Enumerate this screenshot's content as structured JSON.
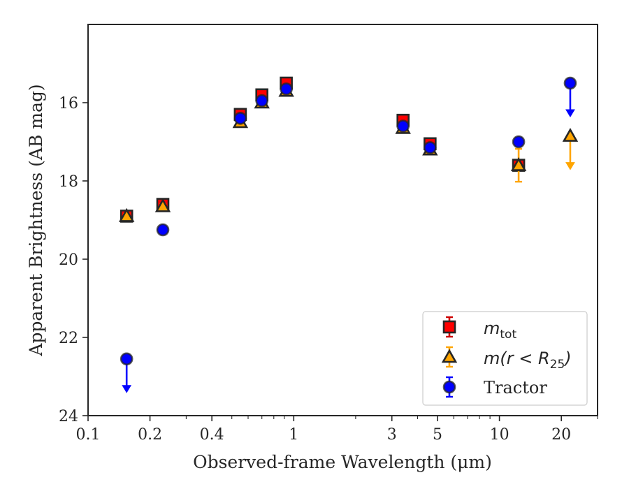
{
  "chart_data": {
    "type": "scatter",
    "title": "",
    "xlabel": "Observed-frame Wavelength (μm)",
    "ylabel": "Apparent Brightness (AB mag)",
    "xscale": "log",
    "xlim": [
      0.1,
      30
    ],
    "ylim": [
      24,
      14
    ],
    "y_inverted": true,
    "grid": false,
    "legend_position": "lower-right",
    "x_ticks": [
      0.1,
      0.2,
      0.4,
      1,
      3,
      5,
      10,
      20
    ],
    "x_tick_labels": [
      "0.1",
      "0.2",
      "0.4",
      "1",
      "3",
      "5",
      "10",
      "20"
    ],
    "y_ticks": [
      16,
      18,
      20,
      22,
      24
    ],
    "y_tick_labels": [
      "16",
      "18",
      "20",
      "22",
      "24"
    ],
    "series": [
      {
        "name": "m_tot",
        "marker": "square",
        "face_color": "#ff0000",
        "edge_color": "#262626",
        "error_color": "#cc0000",
        "points": [
          {
            "x": 0.154,
            "y": 18.9,
            "err": 0.05
          },
          {
            "x": 0.231,
            "y": 18.6,
            "err": 0.05
          },
          {
            "x": 0.55,
            "y": 16.3,
            "err": 0.05
          },
          {
            "x": 0.7,
            "y": 15.8,
            "err": 0.05
          },
          {
            "x": 0.92,
            "y": 15.5,
            "err": 0.05
          },
          {
            "x": 3.4,
            "y": 16.45,
            "err": 0.05
          },
          {
            "x": 4.6,
            "y": 17.05,
            "err": 0.05
          },
          {
            "x": 12.4,
            "y": 17.6,
            "err": 0.05
          }
        ]
      },
      {
        "name": "m(r < R25)",
        "marker": "triangle",
        "face_color": "#ffa500",
        "edge_color": "#262626",
        "error_color": "#ffa500",
        "points": [
          {
            "x": 0.154,
            "y": 18.9,
            "err": 0.05
          },
          {
            "x": 0.231,
            "y": 18.65,
            "err": 0.05
          },
          {
            "x": 0.55,
            "y": 16.5,
            "err": 0.05
          },
          {
            "x": 0.7,
            "y": 16.0,
            "err": 0.05
          },
          {
            "x": 0.92,
            "y": 15.7,
            "err": 0.05
          },
          {
            "x": 3.4,
            "y": 16.65,
            "err": 0.05
          },
          {
            "x": 4.6,
            "y": 17.2,
            "err": 0.05
          },
          {
            "x": 12.4,
            "y": 17.6,
            "err": 0.42
          },
          {
            "x": 22.1,
            "y": 16.85,
            "upper_limit": true
          }
        ]
      },
      {
        "name": "Tractor",
        "marker": "circle",
        "face_color": "#0000ff",
        "edge_color": "#262626",
        "error_color": "#0000ff",
        "points": [
          {
            "x": 0.154,
            "y": 22.55,
            "upper_limit": true
          },
          {
            "x": 0.231,
            "y": 19.25,
            "err": 0.05
          },
          {
            "x": 0.55,
            "y": 16.4,
            "err": 0.05
          },
          {
            "x": 0.7,
            "y": 15.95,
            "err": 0.05
          },
          {
            "x": 0.92,
            "y": 15.65,
            "err": 0.05
          },
          {
            "x": 3.4,
            "y": 16.6,
            "err": 0.05
          },
          {
            "x": 4.6,
            "y": 17.15,
            "err": 0.05
          },
          {
            "x": 12.4,
            "y": 17.0,
            "err": 0.1
          },
          {
            "x": 22.1,
            "y": 15.5,
            "upper_limit": true
          }
        ]
      }
    ]
  },
  "legend": {
    "items": [
      {
        "main": "m",
        "sub": "tot",
        "tail": ""
      },
      {
        "main": "m(r < R",
        "sub": "25",
        "tail": ")"
      },
      {
        "main": "Tractor",
        "sub": "",
        "tail": ""
      }
    ]
  }
}
